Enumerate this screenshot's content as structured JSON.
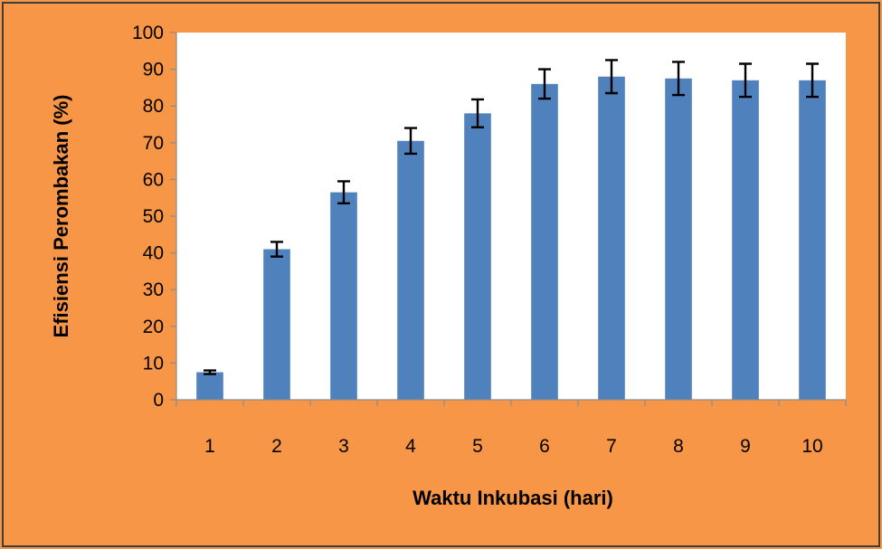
{
  "chart_data": {
    "type": "bar",
    "xlabel": "Waktu Inkubasi (hari)",
    "ylabel": "Efisiensi Perombakan (%)",
    "categories": [
      "1",
      "2",
      "3",
      "4",
      "5",
      "6",
      "7",
      "8",
      "9",
      "10"
    ],
    "values": [
      7.5,
      41,
      56.5,
      70.5,
      78,
      86,
      88,
      87.5,
      87,
      87
    ],
    "errors": [
      0.5,
      2,
      3,
      3.5,
      3.8,
      4,
      4.5,
      4.5,
      4.5,
      4.5
    ],
    "ylim": [
      0,
      100
    ],
    "yticks": [
      0,
      10,
      20,
      30,
      40,
      50,
      60,
      70,
      80,
      90,
      100
    ],
    "grid": false,
    "legend": "none",
    "bar_color": "#4f81bd",
    "background_color": "#f79646"
  }
}
